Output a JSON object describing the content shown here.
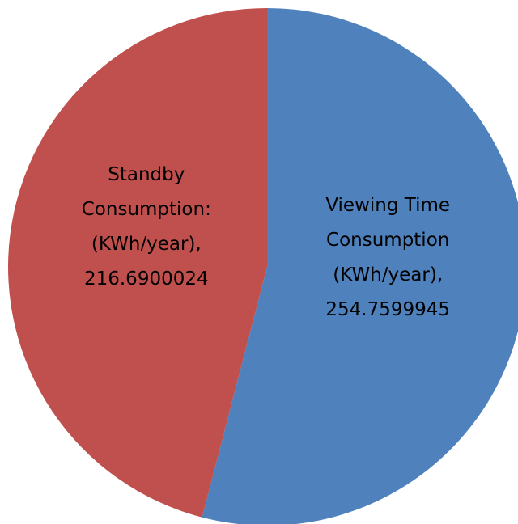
{
  "chart_data": {
    "type": "pie",
    "categories": [
      "Viewing Time Consumption (KWh/year),",
      "Standby Consumption: (KWh/year),"
    ],
    "values": [
      254.7599945,
      216.6900024
    ],
    "colors": [
      "#4f81bd",
      "#c0504d"
    ]
  }
}
